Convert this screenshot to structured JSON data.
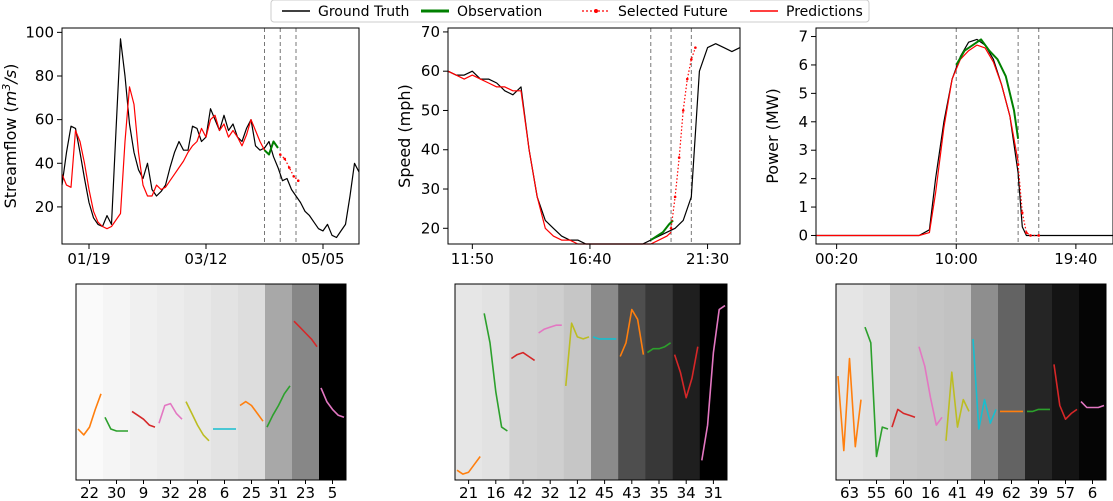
{
  "legend": {
    "items": [
      {
        "label": "Ground Truth",
        "color": "#000000",
        "style": "thin"
      },
      {
        "label": "Observation",
        "color": "#008000",
        "style": "thick"
      },
      {
        "label": "Selected Future",
        "color": "#ff0000",
        "style": "dotted"
      },
      {
        "label": "Predictions",
        "color": "#ff0000",
        "style": "thin"
      }
    ]
  },
  "chart_data": [
    {
      "type": "line",
      "ylabel": "Streamflow (m³/s)",
      "ylabel_plain": "Streamflow (",
      "ylabel_unit_base": "m",
      "ylabel_unit_sup": "3",
      "ylabel_unit_tail": "/s)",
      "x_tick_labels": [
        "01/19",
        "03/12",
        "05/05"
      ],
      "x_tick_positions": [
        12,
        64,
        116
      ],
      "xlim": [
        0,
        132
      ],
      "ylim": [
        3,
        102
      ],
      "y_ticks": [
        20,
        40,
        60,
        80,
        100
      ],
      "vlines": [
        90,
        97,
        104
      ],
      "series": [
        {
          "name": "Ground Truth",
          "color": "#000000",
          "x": [
            0,
            2,
            4,
            6,
            8,
            10,
            12,
            14,
            16,
            18,
            20,
            22,
            24,
            26,
            28,
            30,
            32,
            34,
            36,
            38,
            40,
            42,
            44,
            46,
            48,
            50,
            52,
            54,
            56,
            58,
            60,
            62,
            64,
            66,
            68,
            70,
            72,
            74,
            76,
            78,
            80,
            82,
            84,
            86,
            88,
            90,
            92,
            94,
            96,
            98,
            100,
            102,
            104,
            106,
            108,
            110,
            112,
            114,
            116,
            118,
            120,
            122,
            124,
            126,
            128,
            130,
            132
          ],
          "y": [
            30,
            45,
            57,
            56,
            45,
            33,
            22,
            15,
            12,
            11,
            16,
            12,
            55,
            97,
            80,
            58,
            45,
            37,
            33,
            40,
            28,
            25,
            27,
            30,
            38,
            45,
            50,
            46,
            46,
            57,
            56,
            50,
            52,
            65,
            60,
            55,
            62,
            55,
            58,
            52,
            50,
            56,
            60,
            48,
            46,
            47,
            50,
            43,
            38,
            32,
            33,
            28,
            25,
            22,
            18,
            16,
            13,
            10,
            9,
            12,
            7,
            6,
            9,
            12,
            25,
            40,
            36
          ]
        },
        {
          "name": "Predictions",
          "color": "#ff0000",
          "x": [
            0,
            2,
            4,
            6,
            8,
            10,
            12,
            14,
            16,
            18,
            20,
            22,
            24,
            26,
            28,
            30,
            32,
            34,
            36,
            38,
            40,
            42,
            44,
            46,
            48,
            50,
            52,
            54,
            56,
            58,
            60,
            62,
            64,
            66,
            68,
            70,
            72,
            74,
            76,
            78,
            80,
            82,
            84,
            86,
            88,
            90
          ],
          "y": [
            35,
            30,
            29,
            55,
            50,
            40,
            28,
            18,
            13,
            11,
            10,
            11,
            14,
            17,
            50,
            75,
            67,
            45,
            30,
            25,
            25,
            30,
            28,
            29,
            32,
            35,
            38,
            41,
            45,
            48,
            50,
            56,
            52,
            60,
            62,
            55,
            58,
            52,
            55,
            52,
            48,
            53,
            60,
            55,
            50,
            46
          ]
        },
        {
          "name": "Observation",
          "color": "#008000",
          "x": [
            90,
            92,
            94,
            96
          ],
          "y": [
            46,
            44,
            50,
            47
          ]
        },
        {
          "name": "Selected Future",
          "color": "#ff0000",
          "dotted": true,
          "x": [
            97,
            99,
            101,
            103,
            105
          ],
          "y": [
            44,
            42,
            38,
            34,
            32
          ]
        }
      ]
    },
    {
      "type": "line",
      "ylabel": "Speed (mph)",
      "x_tick_labels": [
        "11:50",
        "16:40",
        "21:30"
      ],
      "x_tick_positions": [
        12,
        70,
        128
      ],
      "xlim": [
        0,
        144
      ],
      "ylim": [
        16,
        71
      ],
      "y_ticks": [
        20,
        30,
        40,
        50,
        60,
        70
      ],
      "vlines": [
        100,
        110,
        120
      ],
      "series": [
        {
          "name": "Ground Truth",
          "color": "#000000",
          "x": [
            0,
            4,
            8,
            12,
            16,
            20,
            24,
            28,
            32,
            36,
            40,
            44,
            48,
            52,
            56,
            60,
            64,
            68,
            72,
            76,
            80,
            84,
            88,
            92,
            96,
            100,
            104,
            108,
            112,
            116,
            120,
            124,
            128,
            132,
            136,
            140,
            144
          ],
          "y": [
            60,
            59,
            59,
            60,
            58,
            58,
            57,
            55,
            54,
            56,
            40,
            28,
            22,
            20,
            18,
            17,
            17,
            16,
            16,
            16,
            16,
            16,
            16,
            16,
            16,
            17,
            18,
            19,
            20,
            22,
            28,
            60,
            66,
            67,
            66,
            65,
            66
          ]
        },
        {
          "name": "Predictions",
          "color": "#ff0000",
          "x": [
            0,
            4,
            8,
            12,
            16,
            20,
            24,
            28,
            32,
            36,
            40,
            44,
            48,
            52,
            56,
            60,
            64,
            68,
            72,
            76,
            80,
            84,
            88,
            92,
            96,
            100,
            104,
            108,
            110
          ],
          "y": [
            60,
            59,
            58,
            59,
            58,
            57,
            56,
            56,
            55,
            55,
            40,
            28,
            20,
            18,
            17,
            17,
            16,
            16,
            16,
            16,
            16,
            16,
            16,
            16,
            16,
            16,
            17,
            18,
            19
          ]
        },
        {
          "name": "Observation",
          "color": "#008000",
          "x": [
            100,
            103,
            106,
            109,
            111
          ],
          "y": [
            17,
            18,
            19,
            21,
            22
          ]
        },
        {
          "name": "Selected Future",
          "color": "#ff0000",
          "dotted": true,
          "x": [
            110,
            112,
            114,
            116,
            118,
            120,
            122
          ],
          "y": [
            20,
            28,
            38,
            50,
            58,
            63,
            66
          ]
        }
      ]
    },
    {
      "type": "line",
      "ylabel": "Power (MW)",
      "x_tick_labels": [
        "00:20",
        "10:00",
        "19:40"
      ],
      "x_tick_positions": [
        10,
        68,
        126
      ],
      "xlim": [
        0,
        144
      ],
      "ylim": [
        -0.3,
        7.3
      ],
      "y_ticks": [
        0,
        1,
        2,
        3,
        4,
        5,
        6,
        7
      ],
      "vlines": [
        68,
        98,
        108
      ],
      "series": [
        {
          "name": "Ground Truth",
          "color": "#000000",
          "x": [
            0,
            10,
            20,
            30,
            40,
            50,
            55,
            58,
            62,
            66,
            70,
            74,
            78,
            82,
            86,
            90,
            94,
            98,
            100,
            102,
            106,
            110,
            114,
            120,
            130,
            144
          ],
          "y": [
            0,
            0,
            0,
            0,
            0,
            0,
            0.2,
            2,
            4,
            5.5,
            6.3,
            6.8,
            6.9,
            6.7,
            6.2,
            5.3,
            4.2,
            2.2,
            0.3,
            0,
            0,
            0,
            0,
            0,
            0,
            0
          ]
        },
        {
          "name": "Predictions",
          "color": "#ff0000",
          "x": [
            0,
            10,
            20,
            30,
            40,
            50,
            55,
            58,
            62,
            66,
            70,
            74,
            78,
            82,
            86,
            90,
            94,
            98
          ],
          "y": [
            0,
            0,
            0,
            0,
            0,
            0,
            0.1,
            1.5,
            3.8,
            5.5,
            6.2,
            6.5,
            6.7,
            6.6,
            6.1,
            5.3,
            4.2,
            2.6
          ]
        },
        {
          "name": "Observation",
          "color": "#008000",
          "x": [
            68,
            72,
            76,
            80,
            84,
            88,
            92,
            96,
            98
          ],
          "y": [
            6.0,
            6.5,
            6.7,
            6.9,
            6.5,
            6.2,
            5.6,
            4.4,
            3.4
          ]
        },
        {
          "name": "Selected Future",
          "color": "#ff0000",
          "dotted": true,
          "x": [
            98,
            100,
            102,
            104,
            108
          ],
          "y": [
            2.5,
            0.8,
            0.1,
            0,
            0
          ]
        }
      ]
    },
    {
      "type": "heatmap",
      "x_tick_labels": [
        "22",
        "30",
        "9",
        "32",
        "28",
        "6",
        "25",
        "31",
        "23",
        "5"
      ],
      "cell_shades": [
        "#fafafa",
        "#f5f5f5",
        "#f0f0f0",
        "#ececec",
        "#e8e8e8",
        "#e3e3e3",
        "#dddddd",
        "#a8a8a8",
        "#878787",
        "#000000"
      ],
      "sparks": [
        {
          "color": "#ff7f0e",
          "y": [
            0.74,
            0.77,
            0.73,
            0.64,
            0.56
          ]
        },
        {
          "color": "#2ca02c",
          "y": [
            0.68,
            0.74,
            0.75,
            0.75,
            0.75
          ]
        },
        {
          "color": "#d62728",
          "y": [
            0.65,
            0.67,
            0.69,
            0.72,
            0.73
          ]
        },
        {
          "color": "#e377c2",
          "y": [
            0.71,
            0.62,
            0.61,
            0.66,
            0.69
          ]
        },
        {
          "color": "#bcbd22",
          "y": [
            0.6,
            0.66,
            0.72,
            0.77,
            0.8
          ]
        },
        {
          "color": "#17becf",
          "y": [
            0.74,
            0.74,
            0.74,
            0.74,
            0.74
          ]
        },
        {
          "color": "#ff7f0e",
          "y": [
            0.62,
            0.6,
            0.62,
            0.66,
            0.7
          ]
        },
        {
          "color": "#2ca02c",
          "y": [
            0.73,
            0.67,
            0.62,
            0.56,
            0.52
          ]
        },
        {
          "color": "#d62728",
          "y": [
            0.19,
            0.22,
            0.25,
            0.28,
            0.32
          ]
        },
        {
          "color": "#e377c2",
          "y": [
            0.53,
            0.6,
            0.64,
            0.67,
            0.68
          ]
        }
      ]
    },
    {
      "type": "heatmap",
      "x_tick_labels": [
        "21",
        "16",
        "42",
        "32",
        "12",
        "45",
        "43",
        "35",
        "34",
        "31"
      ],
      "cell_shades": [
        "#e6e6e6",
        "#e2e2e2",
        "#d2d2d2",
        "#cfcfcf",
        "#c6c6c6",
        "#8b8b8b",
        "#4e4e4e",
        "#383838",
        "#1f1f1f",
        "#000000"
      ],
      "sparks": [
        {
          "color": "#ff7f0e",
          "y": [
            0.95,
            0.97,
            0.96,
            0.92,
            0.88
          ]
        },
        {
          "color": "#2ca02c",
          "y": [
            0.15,
            0.3,
            0.55,
            0.73,
            0.75
          ]
        },
        {
          "color": "#d62728",
          "y": [
            0.38,
            0.36,
            0.35,
            0.37,
            0.39
          ]
        },
        {
          "color": "#e377c2",
          "y": [
            0.25,
            0.23,
            0.22,
            0.21,
            0.21
          ]
        },
        {
          "color": "#bcbd22",
          "y": [
            0.52,
            0.2,
            0.27,
            0.28,
            0.27
          ]
        },
        {
          "color": "#17becf",
          "y": [
            0.27,
            0.28,
            0.28,
            0.28,
            0.28
          ]
        },
        {
          "color": "#ff7f0e",
          "y": [
            0.37,
            0.3,
            0.13,
            0.18,
            0.36
          ]
        },
        {
          "color": "#2ca02c",
          "y": [
            0.35,
            0.33,
            0.33,
            0.32,
            0.3
          ]
        },
        {
          "color": "#d62728",
          "y": [
            0.36,
            0.45,
            0.58,
            0.48,
            0.32
          ]
        },
        {
          "color": "#e377c2",
          "y": [
            0.9,
            0.72,
            0.35,
            0.13,
            0.11
          ]
        }
      ]
    },
    {
      "type": "heatmap",
      "x_tick_labels": [
        "63",
        "55",
        "60",
        "16",
        "41",
        "49",
        "62",
        "39",
        "57",
        "6"
      ],
      "cell_shades": [
        "#e5e5e5",
        "#e1e1e1",
        "#c8c8c8",
        "#c5c5c5",
        "#c2c2c2",
        "#8e8e8e",
        "#636363",
        "#252525",
        "#141414",
        "#050505"
      ],
      "sparks": [
        {
          "color": "#ff7f0e",
          "y": [
            0.47,
            0.85,
            0.38,
            0.83,
            0.59
          ]
        },
        {
          "color": "#2ca02c",
          "y": [
            0.22,
            0.3,
            0.88,
            0.73,
            0.74
          ]
        },
        {
          "color": "#d62728",
          "y": [
            0.73,
            0.64,
            0.66,
            0.67,
            0.68
          ]
        },
        {
          "color": "#e377c2",
          "y": [
            0.32,
            0.42,
            0.58,
            0.72,
            0.68
          ]
        },
        {
          "color": "#bcbd22",
          "y": [
            0.8,
            0.45,
            0.73,
            0.59,
            0.65
          ]
        },
        {
          "color": "#17becf",
          "y": [
            0.28,
            0.74,
            0.59,
            0.71,
            0.64
          ]
        },
        {
          "color": "#ff7f0e",
          "y": [
            0.65,
            0.65,
            0.65,
            0.65,
            0.65
          ]
        },
        {
          "color": "#2ca02c",
          "y": [
            0.65,
            0.65,
            0.64,
            0.64,
            0.64
          ]
        },
        {
          "color": "#d62728",
          "y": [
            0.41,
            0.62,
            0.69,
            0.66,
            0.64
          ]
        },
        {
          "color": "#e377c2",
          "y": [
            0.6,
            0.63,
            0.63,
            0.63,
            0.62
          ]
        }
      ]
    }
  ]
}
